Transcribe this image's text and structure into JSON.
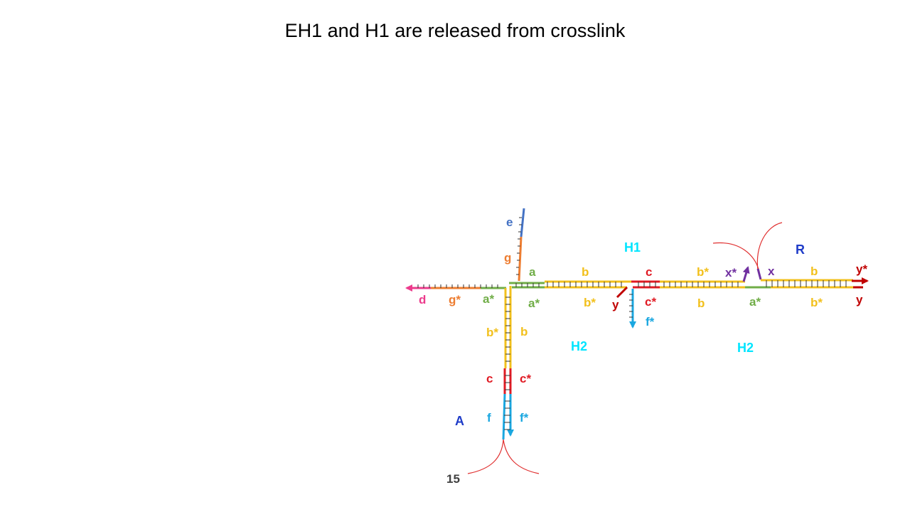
{
  "title": "EH1 and H1 are released from crosslink",
  "page_number": "15",
  "colors": {
    "yellow": "#f2c01c",
    "green": "#70ad47",
    "red": "#e01b24",
    "blue": "#1aa7e0",
    "orange": "#ed7d31",
    "pink": "#ec3b8c",
    "steel": "#4472c4",
    "dark_red": "#c00000",
    "purple": "#7030a0",
    "cyan": "#00e5ff",
    "navy": "#1f3cc8",
    "thin_red": "#e03030"
  },
  "labels": {
    "e": "e",
    "g": "g",
    "a_top": "a",
    "b_top1": "b",
    "c_top": "c",
    "b_star_top": "b*",
    "x_star": "x*",
    "x": "x",
    "b_top2": "b",
    "y_star": "y*",
    "d": "d",
    "g_star": "g*",
    "a_star_left": "a*",
    "a_star_mid": "a*",
    "b_star_mid": "b*",
    "y_left": "y",
    "c_star_mid": "c*",
    "b_mid": "b",
    "a_star_right": "a*",
    "b_star_right": "b*",
    "y_right": "y",
    "f_star_mid": "f*",
    "b_star_vert": "b*",
    "b_vert": "b",
    "c_vert": "c",
    "c_star_vert": "c*",
    "f_vert": "f",
    "f_star_vert": "f*",
    "H1": "H1",
    "R": "R",
    "H2_left": "H2",
    "H2_right": "H2",
    "A": "A"
  }
}
